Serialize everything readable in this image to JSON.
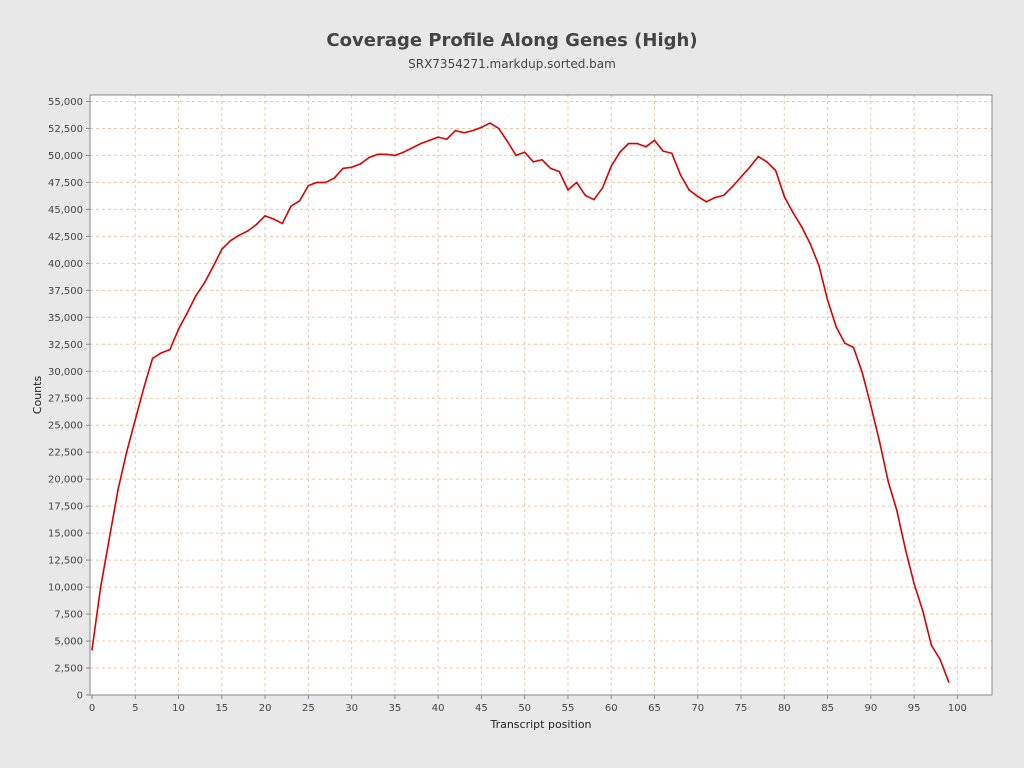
{
  "chart_data": {
    "type": "line",
    "title": "Coverage Profile Along Genes (High)",
    "subtitle": "SRX7354271.markdup.sorted.bam",
    "xlabel": "Transcript position",
    "ylabel": "Counts",
    "xlim": [
      0,
      104
    ],
    "ylim": [
      0,
      55600
    ],
    "xticks": [
      0,
      5,
      10,
      15,
      20,
      25,
      30,
      35,
      40,
      45,
      50,
      55,
      60,
      65,
      70,
      75,
      80,
      85,
      90,
      95,
      100
    ],
    "yticks": [
      0,
      2500,
      5000,
      7500,
      10000,
      12500,
      15000,
      17500,
      20000,
      22500,
      25000,
      27500,
      30000,
      32500,
      35000,
      37500,
      40000,
      42500,
      45000,
      47500,
      50000,
      52500,
      55000
    ],
    "ytick_labels": [
      "0",
      "2,500",
      "5,000",
      "7,500",
      "10,000",
      "12,500",
      "15,000",
      "17,500",
      "20,000",
      "22,500",
      "25,000",
      "27,500",
      "30,000",
      "32,500",
      "35,000",
      "37,500",
      "40,000",
      "42,500",
      "45,000",
      "47,500",
      "50,000",
      "52,500",
      "55,000"
    ],
    "grid": true,
    "series": [
      {
        "color": "#dd0000",
        "x": [
          0,
          1,
          2,
          3,
          4,
          5,
          6,
          7,
          8,
          9,
          10,
          11,
          12,
          13,
          14,
          15,
          16,
          17,
          18,
          19,
          20,
          21,
          22,
          23,
          24,
          25,
          26,
          27,
          28,
          29,
          30,
          31,
          32,
          33,
          34,
          35,
          36,
          37,
          38,
          39,
          40,
          41,
          42,
          43,
          44,
          45,
          46,
          47,
          48,
          49,
          50,
          51,
          52,
          53,
          54,
          55,
          56,
          57,
          58,
          59,
          60,
          61,
          62,
          63,
          64,
          65,
          66,
          67,
          68,
          69,
          70,
          71,
          72,
          73,
          74,
          75,
          76,
          77,
          78,
          79,
          80,
          81,
          82,
          83,
          84,
          85,
          86,
          87,
          88,
          89,
          90,
          91,
          92,
          93,
          94,
          95,
          96,
          97,
          98,
          99
        ],
        "values": [
          4200,
          10000,
          14500,
          19000,
          22500,
          25500,
          28500,
          31200,
          31700,
          32000,
          33900,
          35400,
          37000,
          38200,
          39700,
          41300,
          42100,
          42600,
          43000,
          43600,
          44400,
          44100,
          43700,
          45300,
          45800,
          47200,
          47500,
          47500,
          47900,
          48800,
          48900,
          49200,
          49800,
          50100,
          50100,
          50000,
          50300,
          50700,
          51100,
          51400,
          51700,
          51500,
          52300,
          52100,
          52300,
          52600,
          53000,
          52500,
          51300,
          50000,
          50300,
          49400,
          49600,
          48800,
          48500,
          46800,
          47500,
          46300,
          45900,
          47000,
          49000,
          50300,
          51100,
          51100,
          50800,
          51400,
          50400,
          50200,
          48200,
          46800,
          46200,
          45700,
          46100,
          46300,
          47100,
          48000,
          48900,
          49900,
          49400,
          48600,
          46200,
          44700,
          43400,
          41800,
          39800,
          36600,
          34100,
          32600,
          32200,
          29900,
          26800,
          23500,
          19800,
          17100,
          13500,
          10300,
          7800,
          4600,
          3300,
          1200
        ]
      }
    ]
  }
}
